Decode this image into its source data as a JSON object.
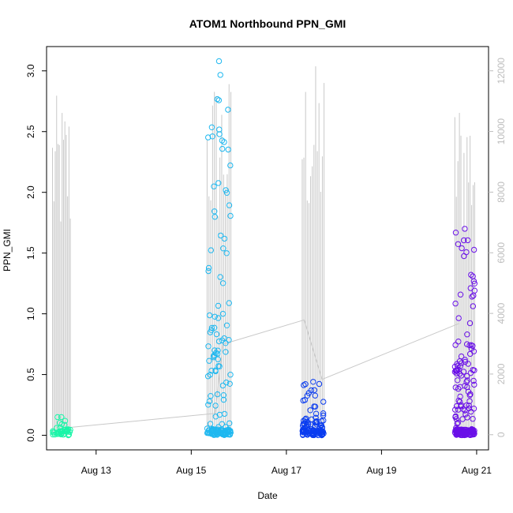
{
  "chart_data": {
    "type": "scatter",
    "title": "ATOM1 Northbound PPN_GMI",
    "xlabel": "Date",
    "ylabel": "PPN_GMI",
    "x_ticks": [
      "Aug 13",
      "Aug 15",
      "Aug 17",
      "Aug 19",
      "Aug 21"
    ],
    "x_range": [
      "2024-08-11 23:00",
      "2024-08-21 06:00"
    ],
    "y_left": {
      "range": [
        -0.12,
        3.2
      ],
      "ticks": [
        "0.0",
        "0.5",
        "1.0",
        "1.5",
        "2.0",
        "2.5",
        "3.0"
      ]
    },
    "y_right": {
      "range": [
        -500,
        12800
      ],
      "ticks": [
        "0",
        "2000",
        "4000",
        "6000",
        "8000",
        "10000",
        "12000"
      ],
      "color": "#bdbdbd"
    },
    "grid": false,
    "legend": "none",
    "deployments": [
      {
        "start": "Aug 12",
        "end": "Aug 12",
        "color": "#1af5a8",
        "ppn_gmi_max": 0.15,
        "right_axis_max": 11200
      },
      {
        "start": "Aug 15",
        "end": "Aug 15",
        "color": "#1fb8f0",
        "ppn_gmi_max": 3.08,
        "right_axis_max": 12000
      },
      {
        "start": "Aug 17",
        "end": "Aug 17",
        "color": "#0a3cf0",
        "ppn_gmi_max": 0.44,
        "right_axis_max": 12300
      },
      {
        "start": "Aug 20",
        "end": "Aug 20",
        "color": "#6a10e8",
        "ppn_gmi_max": 1.7,
        "right_axis_max": 11400
      }
    ],
    "connector_line": {
      "color": "#c8c8c8",
      "points": [
        [
          "2024-08-12 08:00",
          0.06
        ],
        [
          "2024-08-15 12:00",
          0.18
        ],
        [
          "2024-08-15 16:00",
          0.75
        ],
        [
          "2024-08-17 09:00",
          0.95
        ],
        [
          "2024-08-17 18:00",
          0.46
        ],
        [
          "2024-08-20 15:00",
          0.92
        ]
      ]
    }
  }
}
